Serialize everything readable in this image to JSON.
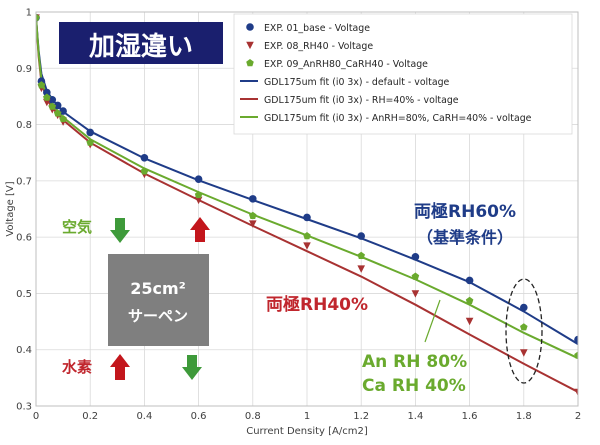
{
  "chart_data": {
    "type": "line",
    "xlabel": "Current Density [A/cm2]",
    "ylabel": "Voltage [V]",
    "xlim": [
      0,
      2
    ],
    "ylim": [
      0.3,
      1.0
    ],
    "xticks": [
      0,
      0.2,
      0.4,
      0.6,
      0.8,
      1,
      1.2,
      1.4,
      1.6,
      1.8,
      2
    ],
    "xtick_labels": [
      "0",
      "0.2",
      "0.4",
      "0.6",
      "0.8",
      "1",
      "1.2",
      "1.4",
      "1.6",
      "1.8",
      "2"
    ],
    "yticks": [
      0.3,
      0.4,
      0.5,
      0.6,
      0.7,
      0.8,
      0.9,
      1
    ],
    "ytick_labels": [
      "0.3",
      "0.4",
      "0.5",
      "0.6",
      "0.7",
      "0.8",
      "0.9",
      "1"
    ],
    "grid": true,
    "legend_position": "top-right",
    "series": [
      {
        "name": "EXP. 01_base - Voltage",
        "kind": "markers",
        "marker": "circle",
        "color": "#1f3c88",
        "x": [
          0.0,
          0.02,
          0.04,
          0.06,
          0.08,
          0.1,
          0.2,
          0.4,
          0.6,
          0.8,
          1.0,
          1.2,
          1.4,
          1.6,
          1.8,
          2.0
        ],
        "y": [
          0.99,
          0.877,
          0.857,
          0.844,
          0.834,
          0.824,
          0.786,
          0.741,
          0.703,
          0.668,
          0.635,
          0.602,
          0.565,
          0.523,
          0.475,
          0.418
        ]
      },
      {
        "name": "EXP. 08_RH40 - Voltage",
        "kind": "markers",
        "marker": "triangle-down",
        "color": "#a83232",
        "x": [
          0.0,
          0.02,
          0.04,
          0.06,
          0.08,
          0.1,
          0.2,
          0.4,
          0.6,
          0.8,
          1.0,
          1.2,
          1.4,
          1.6,
          1.8,
          2.0
        ],
        "y": [
          0.99,
          0.865,
          0.84,
          0.827,
          0.817,
          0.805,
          0.765,
          0.712,
          0.666,
          0.624,
          0.585,
          0.544,
          0.5,
          0.451,
          0.395,
          0.325
        ]
      },
      {
        "name": "EXP. 09_AnRH80_CaRH40 - Voltage",
        "kind": "markers",
        "marker": "pentagon",
        "color": "#6aaa2e",
        "x": [
          0.0,
          0.02,
          0.04,
          0.06,
          0.08,
          0.1,
          0.2,
          0.4,
          0.6,
          0.8,
          1.0,
          1.2,
          1.4,
          1.6,
          1.8,
          2.0
        ],
        "y": [
          0.99,
          0.87,
          0.848,
          0.832,
          0.82,
          0.81,
          0.768,
          0.717,
          0.675,
          0.638,
          0.602,
          0.567,
          0.53,
          0.487,
          0.44,
          0.39
        ]
      },
      {
        "name": "GDL175um fit (i0 3x) - default - voltage",
        "kind": "line",
        "color": "#1f3c88",
        "x": [
          0.0,
          0.01,
          0.02,
          0.04,
          0.06,
          0.1,
          0.2,
          0.4,
          0.6,
          0.8,
          1.0,
          1.2,
          1.4,
          1.6,
          1.8,
          2.0
        ],
        "y": [
          0.99,
          0.93,
          0.89,
          0.86,
          0.845,
          0.823,
          0.788,
          0.74,
          0.701,
          0.666,
          0.632,
          0.598,
          0.56,
          0.52,
          0.468,
          0.41
        ]
      },
      {
        "name": "GDL175um fit (i0 3x) - RH=40% - voltage",
        "kind": "line",
        "color": "#a83232",
        "x": [
          0.0,
          0.01,
          0.02,
          0.04,
          0.06,
          0.1,
          0.2,
          0.4,
          0.6,
          0.8,
          1.0,
          1.2,
          1.4,
          1.6,
          1.8,
          2.0
        ],
        "y": [
          0.99,
          0.92,
          0.875,
          0.845,
          0.83,
          0.808,
          0.768,
          0.713,
          0.666,
          0.62,
          0.575,
          0.53,
          0.48,
          0.427,
          0.375,
          0.325
        ]
      },
      {
        "name": "GDL175um fit (i0 3x) - AnRH=80%, CaRH=40% - voltage",
        "kind": "line",
        "color": "#6aaa2e",
        "x": [
          0.0,
          0.01,
          0.02,
          0.04,
          0.06,
          0.1,
          0.2,
          0.4,
          0.6,
          0.8,
          1.0,
          1.2,
          1.4,
          1.6,
          1.8,
          2.0
        ],
        "y": [
          0.99,
          0.925,
          0.88,
          0.85,
          0.835,
          0.813,
          0.774,
          0.722,
          0.68,
          0.64,
          0.603,
          0.565,
          0.525,
          0.48,
          0.43,
          0.385
        ]
      }
    ],
    "annotations": {
      "title_badge": "加湿違い",
      "label_rh60_line1": "両極RH60%",
      "label_rh60_line2": "（基準条件）",
      "label_rh40": "両極RH40%",
      "label_anca_line1": "An RH 80%",
      "label_anca_line2": "Ca RH 40%",
      "air_label": "空気",
      "h2_label": "水素",
      "cell_line1": "25cm²",
      "cell_line2": "サーペン"
    },
    "colors": {
      "navy": "#1f3c88",
      "red": "#c0262d",
      "green": "#6aaa2e",
      "arrow_green": "#3e9a3a",
      "arrow_red": "#c3161c",
      "badge_bg": "#1a1f6e",
      "grey_box": "#7f7f7f"
    }
  }
}
